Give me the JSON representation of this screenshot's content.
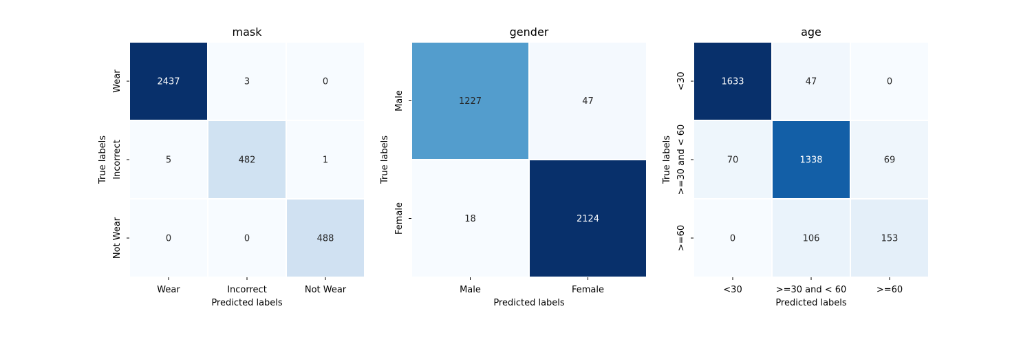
{
  "chart_data": [
    {
      "type": "heatmap",
      "title": "mask",
      "xlabel": "Predicted labels",
      "ylabel": "True labels",
      "x_categories": [
        "Wear",
        "Incorrect",
        "Not Wear"
      ],
      "y_categories": [
        "Wear",
        "Incorrect",
        "Not Wear"
      ],
      "values": [
        [
          2437,
          3,
          0
        ],
        [
          5,
          482,
          1
        ],
        [
          0,
          0,
          488
        ]
      ],
      "colormap": "Blues",
      "cell_border_color": "#ffffff",
      "colorbar": false
    },
    {
      "type": "heatmap",
      "title": "gender",
      "xlabel": "Predicted labels",
      "ylabel": "True labels",
      "x_categories": [
        "Male",
        "Female"
      ],
      "y_categories": [
        "Male",
        "Female"
      ],
      "values": [
        [
          1227,
          47
        ],
        [
          18,
          2124
        ]
      ],
      "colormap": "Blues",
      "cell_border_color": "#ffffff",
      "colorbar": false
    },
    {
      "type": "heatmap",
      "title": "age",
      "xlabel": "Predicted labels",
      "ylabel": "True labels",
      "x_categories": [
        "<30",
        ">=30 and < 60",
        ">=60"
      ],
      "y_categories": [
        "<30",
        ">=30 and < 60",
        ">=60"
      ],
      "values": [
        [
          1633,
          47,
          0
        ],
        [
          70,
          1338,
          69
        ],
        [
          0,
          106,
          153
        ]
      ],
      "colormap": "Blues",
      "cell_border_color": "#ffffff",
      "colorbar": false
    }
  ]
}
